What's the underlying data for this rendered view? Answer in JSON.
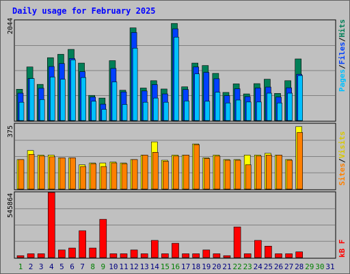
{
  "title": "Daily usage for February 2025",
  "colors": {
    "title": "#0000ff",
    "pages": "#007f57",
    "files": "#0040ff",
    "hits": "#00c0ff",
    "sites": "#ff8000",
    "visits": "#ffff00",
    "kbf": "#ff0000",
    "weekend_day": "#007f00",
    "day": "#000080"
  },
  "panels": {
    "top": {
      "max_label": "2044",
      "legend": {
        "pages": "Pages",
        "files": "Files",
        "hits": "Hits",
        "sep": "/"
      }
    },
    "mid": {
      "max_label": "375",
      "legend": {
        "sites": "Sites",
        "visits": "Visits",
        "sep": "/"
      }
    },
    "bot": {
      "max_label": "545864",
      "legend": {
        "kbf": "kB F"
      }
    }
  },
  "chart_data": [
    {
      "type": "bar",
      "title": "Daily usage for February 2025",
      "categories": [
        "1",
        "2",
        "3",
        "4",
        "5",
        "6",
        "7",
        "8",
        "9",
        "10",
        "11",
        "12",
        "13",
        "14",
        "15",
        "16",
        "17",
        "18",
        "19",
        "20",
        "21",
        "22",
        "23",
        "24",
        "25",
        "26",
        "27",
        "28",
        "29",
        "30",
        "31"
      ],
      "ylim": [
        0,
        2044
      ],
      "series": [
        {
          "name": "Pages",
          "values": [
            640,
            1096,
            740,
            1285,
            1355,
            1455,
            1175,
            515,
            460,
            1225,
            620,
            1895,
            665,
            815,
            645,
            1985,
            690,
            1175,
            1125,
            965,
            575,
            750,
            545,
            755,
            845,
            555,
            815,
            1260,
            0,
            0,
            0
          ]
        },
        {
          "name": "Files",
          "values": [
            560,
            860,
            660,
            1105,
            1165,
            1270,
            1000,
            480,
            335,
            1065,
            585,
            1800,
            605,
            735,
            545,
            1875,
            635,
            1095,
            985,
            855,
            510,
            650,
            490,
            665,
            685,
            480,
            670,
            945,
            0,
            0,
            0
          ]
        },
        {
          "name": "Hits",
          "values": [
            375,
            860,
            430,
            890,
            845,
            1240,
            880,
            395,
            230,
            790,
            330,
            1480,
            375,
            460,
            375,
            1705,
            400,
            955,
            395,
            580,
            360,
            420,
            380,
            380,
            560,
            360,
            560,
            920,
            0,
            0,
            0
          ]
        }
      ]
    },
    {
      "type": "bar",
      "categories": [
        "1",
        "2",
        "3",
        "4",
        "5",
        "6",
        "7",
        "8",
        "9",
        "10",
        "11",
        "12",
        "13",
        "14",
        "15",
        "16",
        "17",
        "18",
        "19",
        "20",
        "21",
        "22",
        "23",
        "24",
        "25",
        "26",
        "27",
        "28",
        "29",
        "30",
        "31"
      ],
      "ylim": [
        0,
        375
      ],
      "series": [
        {
          "name": "Visits",
          "values": [
            170,
            222,
            196,
            196,
            180,
            180,
            140,
            150,
            150,
            156,
            150,
            170,
            196,
            272,
            166,
            196,
            196,
            260,
            180,
            196,
            170,
            170,
            196,
            196,
            206,
            196,
            170,
            360,
            0,
            0,
            0
          ]
        },
        {
          "name": "Sites",
          "values": [
            170,
            200,
            190,
            186,
            180,
            180,
            130,
            146,
            130,
            150,
            146,
            170,
            196,
            212,
            160,
            190,
            196,
            256,
            176,
            190,
            166,
            166,
            140,
            190,
            196,
            196,
            166,
            326,
            0,
            0,
            0
          ]
        }
      ]
    },
    {
      "type": "bar",
      "categories": [
        "1",
        "2",
        "3",
        "4",
        "5",
        "6",
        "7",
        "8",
        "9",
        "10",
        "11",
        "12",
        "13",
        "14",
        "15",
        "16",
        "17",
        "18",
        "19",
        "20",
        "21",
        "22",
        "23",
        "24",
        "25",
        "26",
        "27",
        "28",
        "29",
        "30",
        "31"
      ],
      "ylim": [
        0,
        545864
      ],
      "series": [
        {
          "name": "kB F",
          "values": [
            16000,
            32000,
            32000,
            545864,
            64000,
            80000,
            225000,
            80000,
            321000,
            32000,
            32000,
            64000,
            32000,
            144000,
            32000,
            120000,
            32000,
            32000,
            64000,
            32000,
            16000,
            257000,
            32000,
            144000,
            96000,
            32000,
            32000,
            48000,
            0,
            0,
            0
          ]
        }
      ]
    }
  ]
}
